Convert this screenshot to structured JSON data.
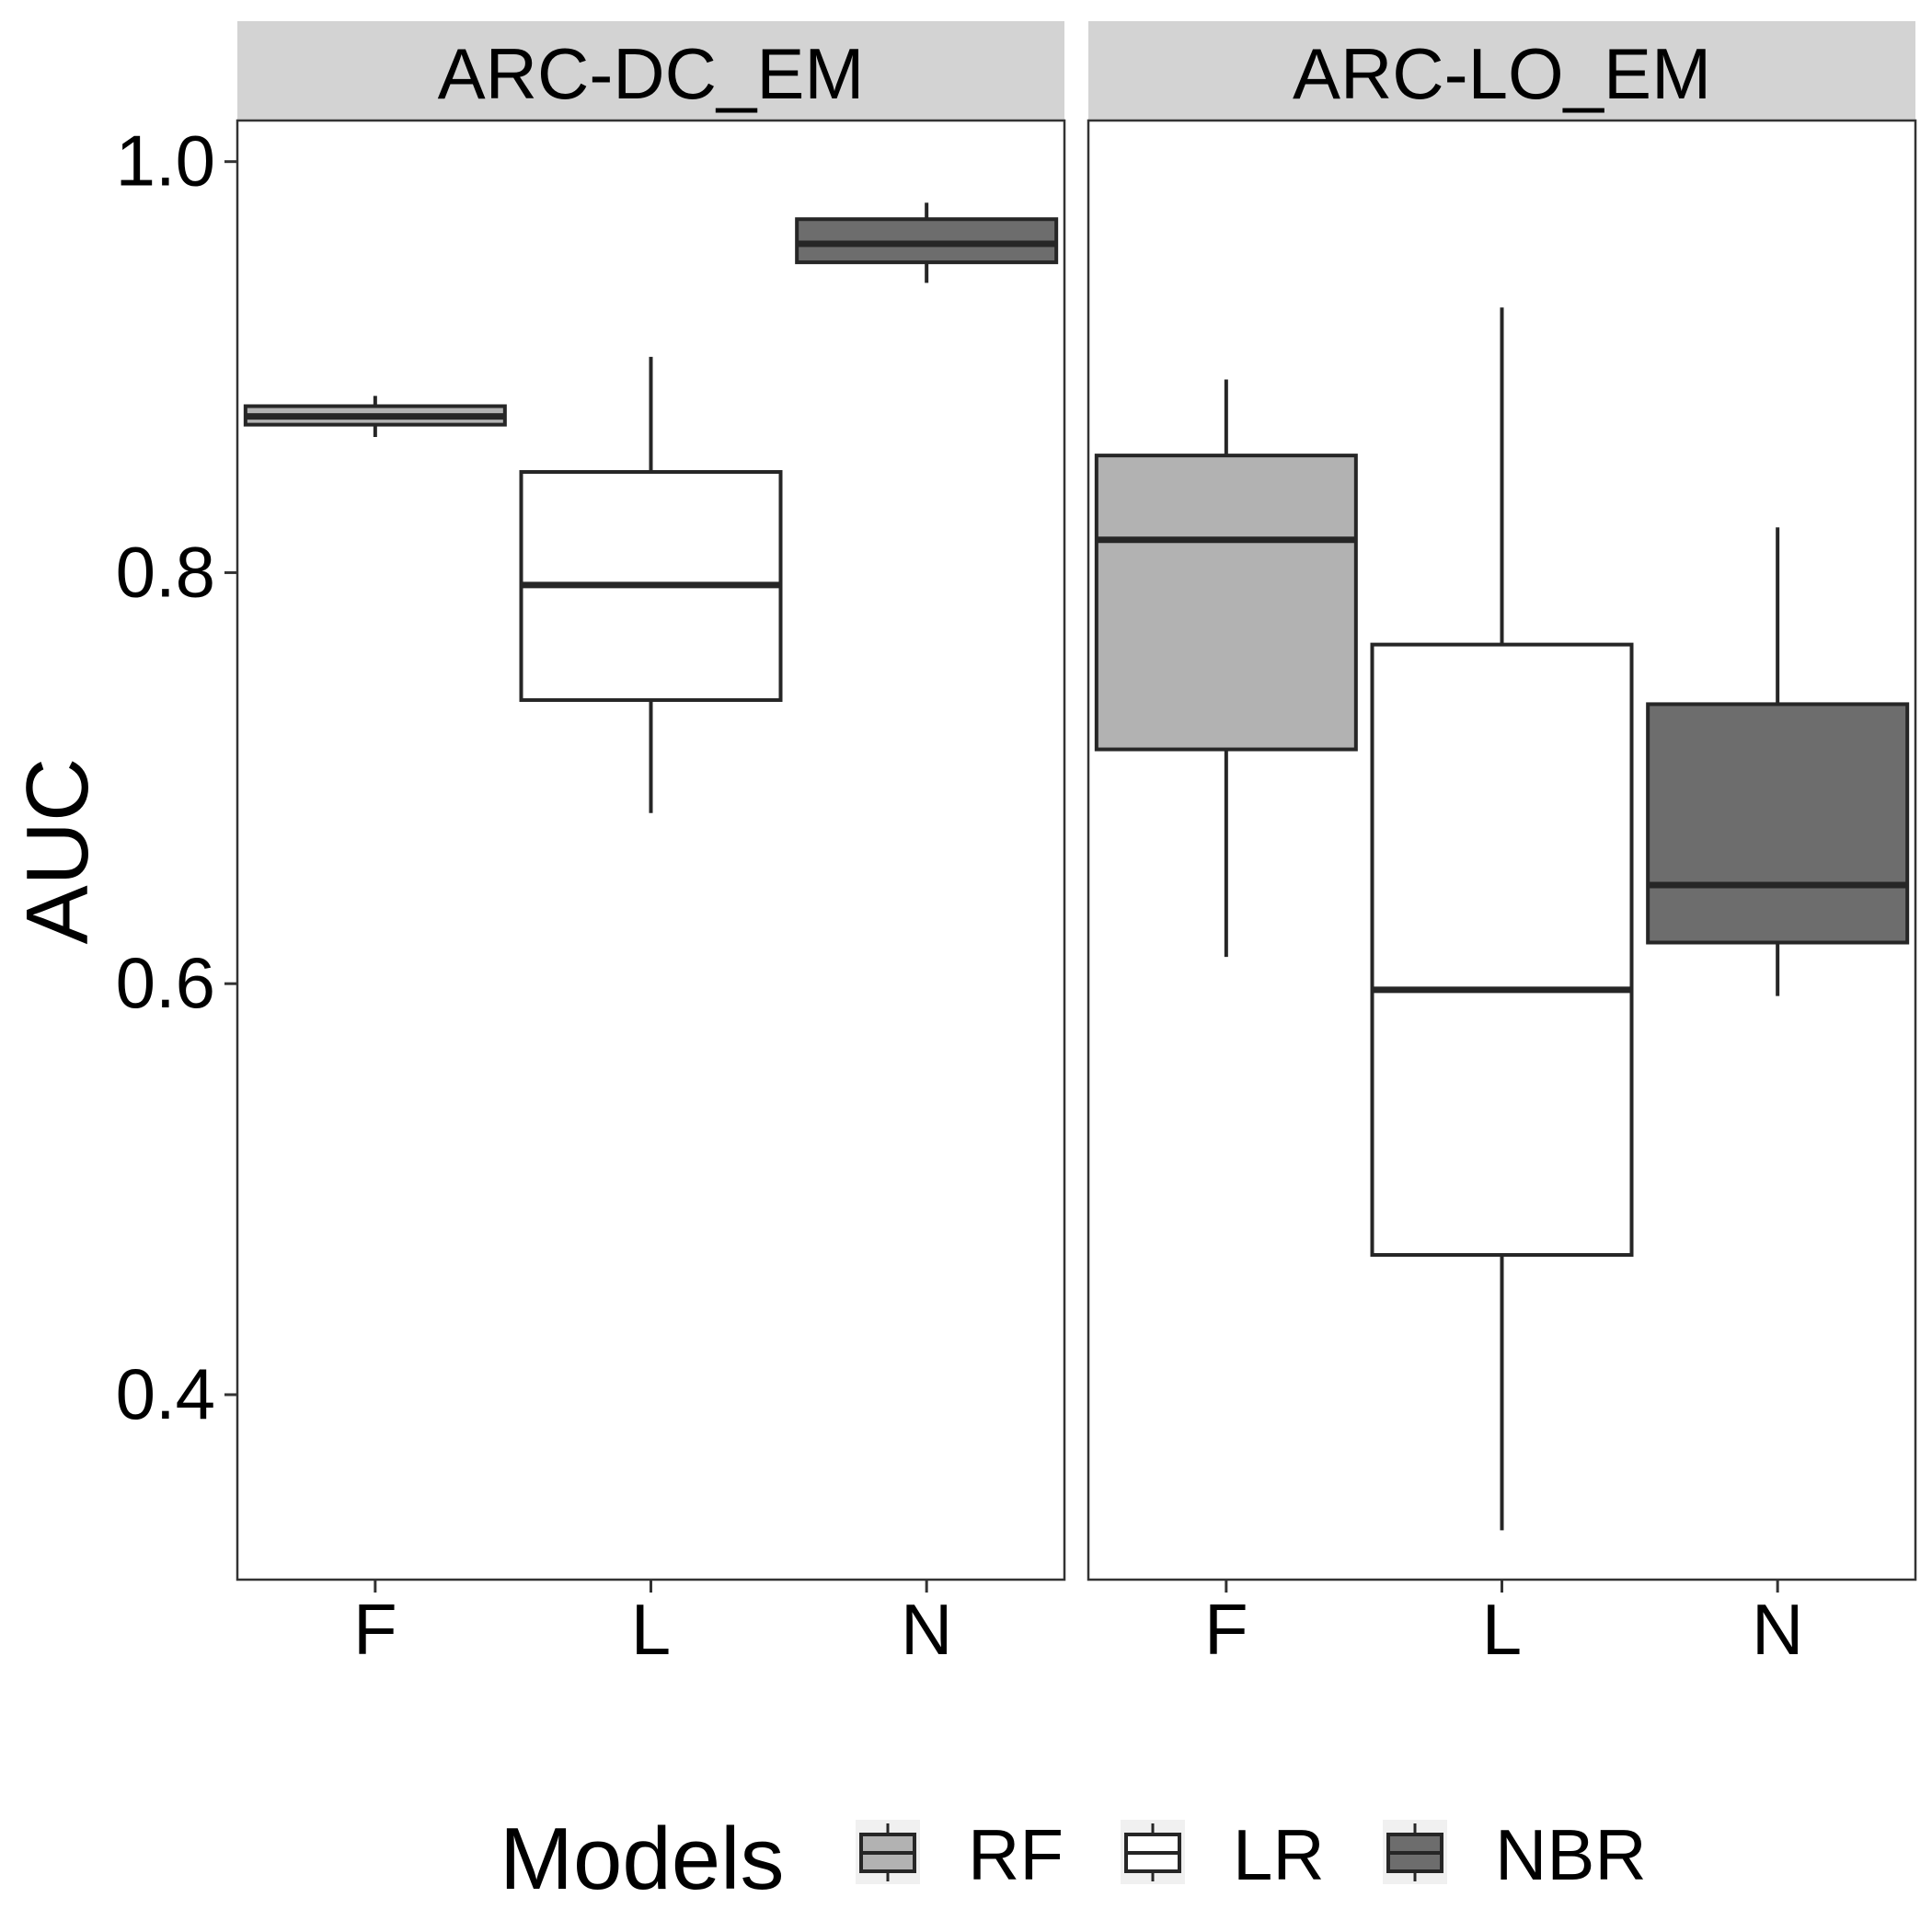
{
  "chart_data": {
    "type": "boxplot",
    "ylabel": "AUC",
    "ylim": [
      0.31,
      1.02
    ],
    "yticks": [
      0.4,
      0.6,
      0.8,
      1.0
    ],
    "ytick_labels": [
      "0.4",
      "0.6",
      "0.8",
      "1.0"
    ],
    "categories": [
      "F",
      "L",
      "N"
    ],
    "legend": {
      "title": "Models",
      "position": "bottom",
      "items": [
        {
          "key": "F",
          "label": "RF",
          "color": "#b2b2b2"
        },
        {
          "key": "L",
          "label": "LR",
          "color": "#ffffff"
        },
        {
          "key": "N",
          "label": "NBR",
          "color": "#6d6d6d"
        }
      ]
    },
    "grid": false,
    "panels": [
      {
        "title": "ARC-DC_EM",
        "boxes": [
          {
            "category": "F",
            "min": 0.866,
            "q1": 0.872,
            "median": 0.876,
            "q3": 0.881,
            "max": 0.886
          },
          {
            "category": "L",
            "min": 0.683,
            "q1": 0.738,
            "median": 0.794,
            "q3": 0.849,
            "max": 0.905
          },
          {
            "category": "N",
            "min": 0.941,
            "q1": 0.951,
            "median": 0.96,
            "q3": 0.972,
            "max": 0.98
          }
        ]
      },
      {
        "title": "ARC-LO_EM",
        "boxes": [
          {
            "category": "F",
            "min": 0.613,
            "q1": 0.714,
            "median": 0.816,
            "q3": 0.857,
            "max": 0.894
          },
          {
            "category": "L",
            "min": 0.334,
            "q1": 0.468,
            "median": 0.597,
            "q3": 0.765,
            "max": 0.929
          },
          {
            "category": "N",
            "min": 0.594,
            "q1": 0.62,
            "median": 0.648,
            "q3": 0.736,
            "max": 0.822
          }
        ]
      }
    ]
  }
}
